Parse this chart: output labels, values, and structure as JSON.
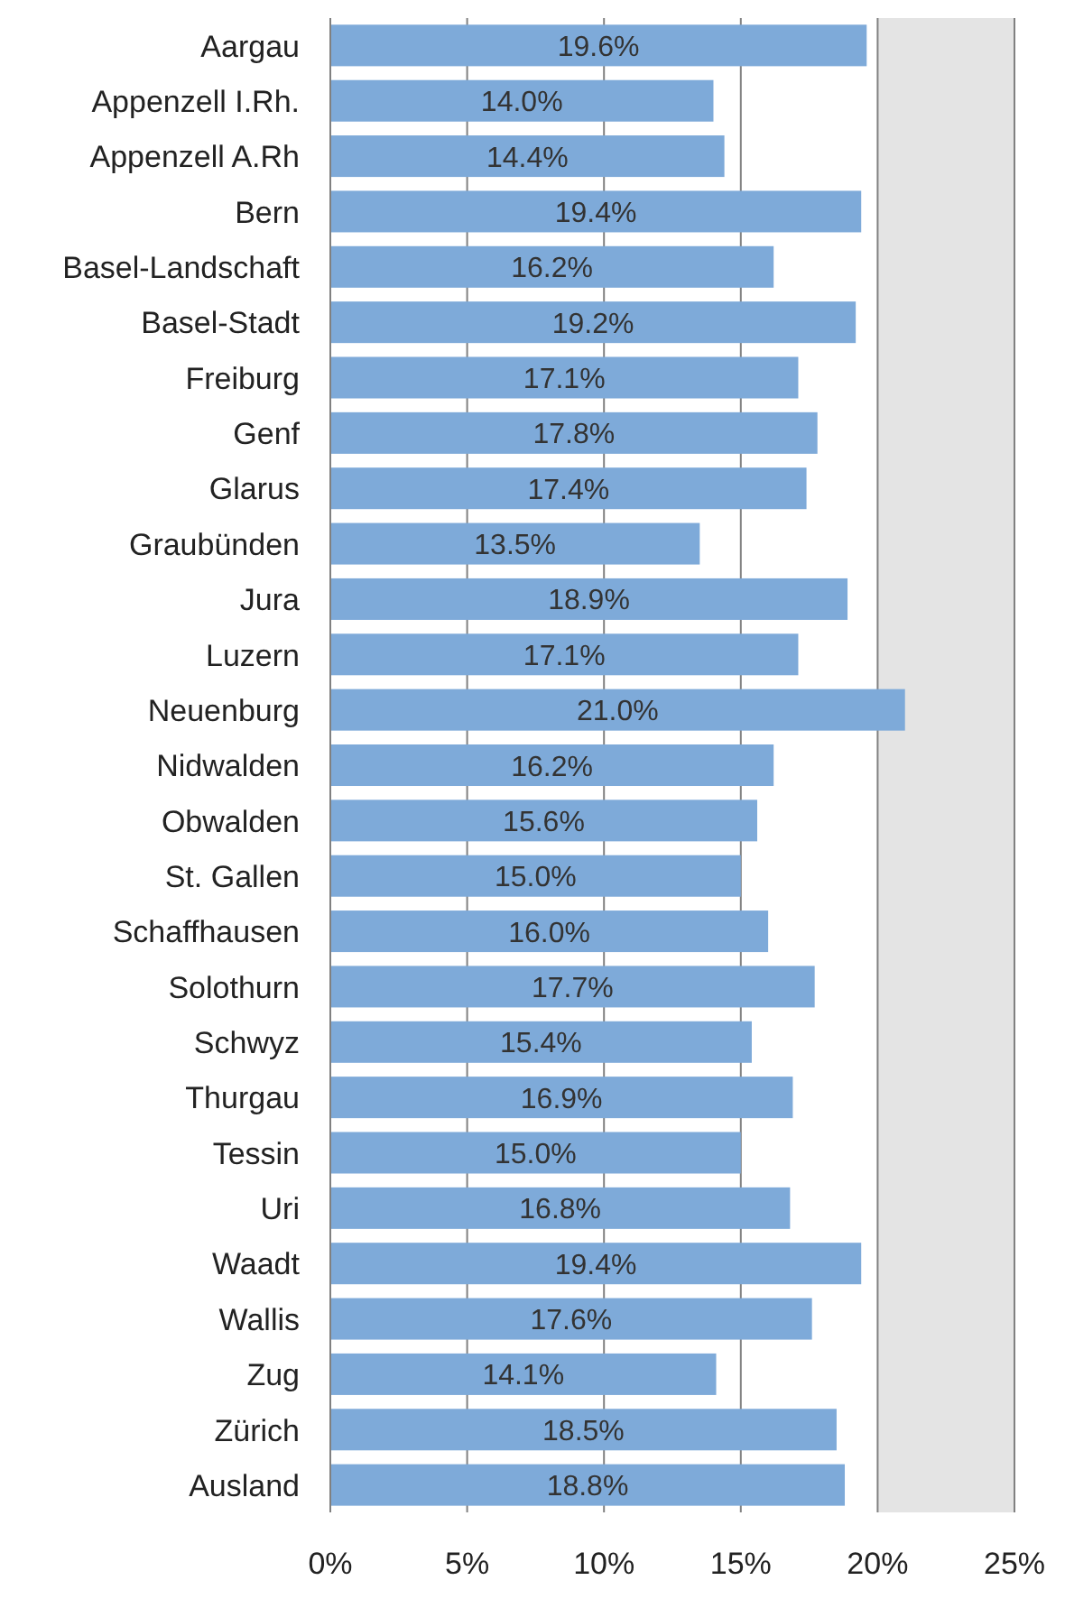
{
  "chart_data": {
    "type": "bar",
    "orientation": "horizontal",
    "categories": [
      "Aargau",
      "Appenzell I.Rh.",
      "Appenzell A.Rh",
      "Bern",
      "Basel-Landschaft",
      "Basel-Stadt",
      "Freiburg",
      "Genf",
      "Glarus",
      "Graubünden",
      "Jura",
      "Luzern",
      "Neuenburg",
      "Nidwalden",
      "Obwalden",
      "St. Gallen",
      "Schaffhausen",
      "Solothurn",
      "Schwyz",
      "Thurgau",
      "Tessin",
      "Uri",
      "Waadt",
      "Wallis",
      "Zug",
      "Zürich",
      "Ausland"
    ],
    "values": [
      19.6,
      14.0,
      14.4,
      19.4,
      16.2,
      19.2,
      17.1,
      17.8,
      17.4,
      13.5,
      18.9,
      17.1,
      21.0,
      16.2,
      15.6,
      15.0,
      16.0,
      17.7,
      15.4,
      16.9,
      15.0,
      16.8,
      19.4,
      17.6,
      14.1,
      18.5,
      18.8
    ],
    "value_labels": [
      "19.6%",
      "14.0%",
      "14.4%",
      "19.4%",
      "16.2%",
      "19.2%",
      "17.1%",
      "17.8%",
      "17.4%",
      "13.5%",
      "18.9%",
      "17.1%",
      "21.0%",
      "16.2%",
      "15.6%",
      "15.0%",
      "16.0%",
      "17.7%",
      "15.4%",
      "16.9%",
      "15.0%",
      "16.8%",
      "19.4%",
      "17.6%",
      "14.1%",
      "18.5%",
      "18.8%"
    ],
    "color": "#7eaad9",
    "xlim": [
      0,
      25
    ],
    "xticks": [
      {
        "value": 0,
        "label": "0%"
      },
      {
        "value": 5,
        "label": "5%"
      },
      {
        "value": 10,
        "label": "10%"
      },
      {
        "value": 15,
        "label": "15%"
      },
      {
        "value": 20,
        "label": "20%"
      },
      {
        "value": 25,
        "label": "25%"
      }
    ],
    "grid": "x",
    "bands": [
      {
        "axis": "x",
        "from": 20,
        "to": 25,
        "color": "#e4e4e4"
      }
    ]
  }
}
